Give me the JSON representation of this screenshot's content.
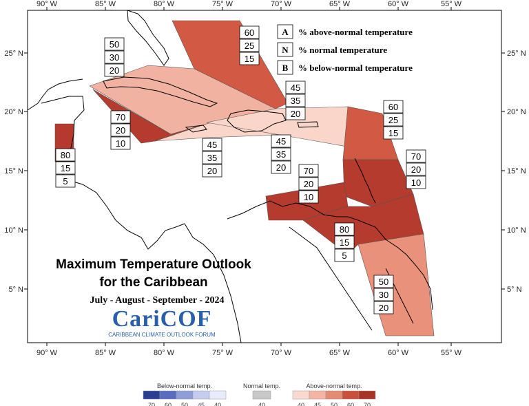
{
  "title_line1": "Maximum Temperature Outlook",
  "title_line2": "for the Caribbean",
  "subtitle": "July - August - September - 2024",
  "logo_text": "CariCOF",
  "logo_subtext": "CARIBBEAN CLIMATE OUTLOOK FORUM",
  "lon_labels": [
    "90° W",
    "85° W",
    "80° W",
    "75° W",
    "70° W",
    "65° W",
    "60° W",
    "55° W"
  ],
  "lat_labels": [
    "25° N",
    "20° N",
    "15° N",
    "10° N",
    "5° N"
  ],
  "legend_keys": [
    {
      "letter": "A",
      "text": "% above-normal temperature"
    },
    {
      "letter": "N",
      "text": "% normal temperature"
    },
    {
      "letter": "B",
      "text": "% below-normal temperature"
    }
  ],
  "probability_boxes": [
    {
      "id": "bahamas",
      "values": [
        "60",
        "25",
        "15"
      ]
    },
    {
      "id": "cuba",
      "values": [
        "50",
        "30",
        "20"
      ]
    },
    {
      "id": "belize",
      "values": [
        "80",
        "15",
        "5"
      ]
    },
    {
      "id": "cayman",
      "values": [
        "70",
        "20",
        "10"
      ]
    },
    {
      "id": "jamaica",
      "values": [
        "45",
        "35",
        "20"
      ]
    },
    {
      "id": "hispaniola-south",
      "values": [
        "45",
        "35",
        "20"
      ]
    },
    {
      "id": "hispaniola-north",
      "values": [
        "45",
        "35",
        "20"
      ]
    },
    {
      "id": "leeward",
      "values": [
        "60",
        "25",
        "15"
      ]
    },
    {
      "id": "windward-east",
      "values": [
        "70",
        "20",
        "10"
      ]
    },
    {
      "id": "southern-caribbean",
      "values": [
        "70",
        "20",
        "10"
      ]
    },
    {
      "id": "trinidad",
      "values": [
        "80",
        "15",
        "5"
      ]
    },
    {
      "id": "guianas",
      "values": [
        "50",
        "30",
        "20"
      ]
    }
  ],
  "colorbar": {
    "below": {
      "label": "Below-normal temp.",
      "ticks": [
        "70",
        "60",
        "50",
        "45",
        "40"
      ],
      "colors": [
        "#2c3e8f",
        "#5a6cc0",
        "#8f9dd8",
        "#c4cdef",
        "#e8ecfa"
      ]
    },
    "normal": {
      "label": "Normal temp.",
      "ticks": [
        "40"
      ],
      "colors": [
        "#c8c8c8"
      ]
    },
    "above": {
      "label": "Above-normal temp.",
      "ticks": [
        "40",
        "45",
        "50",
        "60",
        "70"
      ],
      "colors": [
        "#fbd9d0",
        "#f5b5a5",
        "#e58a73",
        "#c8503c",
        "#a93226"
      ]
    }
  },
  "region_colors": {
    "bahamas": "#d25a44",
    "cuba": "#f2b2a2",
    "belize": "#b53a2d",
    "cayman": "#b43b2e",
    "jamaica": "#fad5ca",
    "hispaniola": "#fad5ca",
    "leeward": "#d25a44",
    "windward": "#b43b2e",
    "southern": "#b43b2e",
    "trinidad": "#b43b2e",
    "guianas": "#e9917b"
  }
}
